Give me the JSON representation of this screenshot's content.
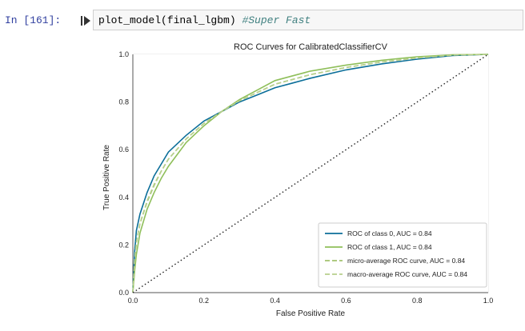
{
  "cell": {
    "prompt": "In [161]:",
    "code": "plot_model(final_lgbm)",
    "comment": "#Super Fast"
  },
  "chart_data": {
    "type": "line",
    "title": "ROC Curves for CalibratedClassifierCV",
    "xlabel": "False Positive Rate",
    "ylabel": "True Positive Rate",
    "xlim": [
      0.0,
      1.0
    ],
    "ylim": [
      0.0,
      1.0
    ],
    "x_ticks": [
      "0.0",
      "0.2",
      "0.4",
      "0.6",
      "0.8",
      "1.0"
    ],
    "y_ticks": [
      "0.0",
      "0.2",
      "0.4",
      "0.6",
      "0.8",
      "1.0"
    ],
    "grid": true,
    "legend_position": "bottom-right",
    "series": [
      {
        "name": "ROC of class 0, AUC = 0.84",
        "color": "#0b6e99",
        "dash": "solid",
        "x": [
          0.0,
          0.005,
          0.01,
          0.02,
          0.04,
          0.06,
          0.08,
          0.1,
          0.15,
          0.2,
          0.25,
          0.3,
          0.35,
          0.4,
          0.45,
          0.5,
          0.6,
          0.7,
          0.8,
          0.9,
          1.0
        ],
        "y": [
          0.0,
          0.17,
          0.26,
          0.33,
          0.42,
          0.49,
          0.54,
          0.59,
          0.66,
          0.72,
          0.76,
          0.8,
          0.83,
          0.86,
          0.88,
          0.9,
          0.935,
          0.96,
          0.98,
          0.995,
          1.0
        ]
      },
      {
        "name": "ROC of class 1, AUC = 0.84",
        "color": "#8fbf5a",
        "dash": "solid",
        "x": [
          0.0,
          0.005,
          0.01,
          0.02,
          0.04,
          0.06,
          0.08,
          0.1,
          0.15,
          0.2,
          0.25,
          0.3,
          0.35,
          0.4,
          0.45,
          0.5,
          0.6,
          0.7,
          0.8,
          0.9,
          1.0
        ],
        "y": [
          0.0,
          0.09,
          0.16,
          0.25,
          0.35,
          0.42,
          0.48,
          0.53,
          0.63,
          0.7,
          0.76,
          0.81,
          0.85,
          0.89,
          0.91,
          0.93,
          0.955,
          0.975,
          0.99,
          0.998,
          1.0
        ]
      },
      {
        "name": "micro-average ROC curve, AUC = 0.84",
        "color": "#a2c26f",
        "dash": "6,3",
        "x": [
          0.0,
          0.005,
          0.01,
          0.02,
          0.04,
          0.06,
          0.08,
          0.1,
          0.15,
          0.2,
          0.25,
          0.3,
          0.35,
          0.4,
          0.45,
          0.5,
          0.6,
          0.7,
          0.8,
          0.9,
          1.0
        ],
        "y": [
          0.0,
          0.13,
          0.21,
          0.29,
          0.38,
          0.45,
          0.51,
          0.56,
          0.645,
          0.71,
          0.76,
          0.805,
          0.84,
          0.875,
          0.895,
          0.915,
          0.945,
          0.968,
          0.985,
          0.997,
          1.0
        ]
      },
      {
        "name": "macro-average ROC curve, AUC = 0.84",
        "color": "#b7cf8c",
        "dash": "6,3",
        "x": [
          0.0,
          0.005,
          0.01,
          0.02,
          0.04,
          0.06,
          0.08,
          0.1,
          0.15,
          0.2,
          0.25,
          0.3,
          0.35,
          0.4,
          0.45,
          0.5,
          0.6,
          0.7,
          0.8,
          0.9,
          1.0
        ],
        "y": [
          0.0,
          0.13,
          0.21,
          0.29,
          0.385,
          0.455,
          0.51,
          0.56,
          0.645,
          0.71,
          0.76,
          0.805,
          0.84,
          0.875,
          0.895,
          0.915,
          0.945,
          0.968,
          0.985,
          0.997,
          1.0
        ]
      }
    ],
    "reference_line": {
      "x": [
        0,
        1
      ],
      "y": [
        0,
        1
      ],
      "color": "#222222",
      "dash": "dotted"
    }
  }
}
